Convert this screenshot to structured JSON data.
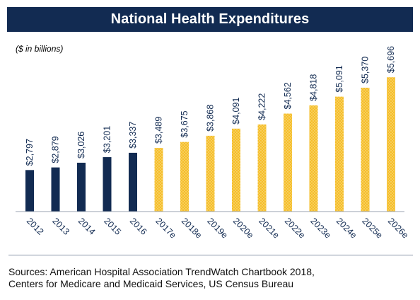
{
  "header": {
    "title": "National Health Expenditures"
  },
  "subtitle": "($ in billions)",
  "colors": {
    "header_bg": "#122b52",
    "actual_bar": "#122b52",
    "estimate_bar": "#f5be2a",
    "estimate_dot": "#fce7a6"
  },
  "chart_data": {
    "type": "bar",
    "title": "National Health Expenditures",
    "subtitle": "($ in billions)",
    "xlabel": "",
    "ylabel": "",
    "categories": [
      "2012",
      "2013",
      "2014",
      "2015",
      "2016",
      "2017e",
      "2018e",
      "2019e",
      "2020e",
      "2021e",
      "2022e",
      "2023e",
      "2024e",
      "2025e",
      "2026e"
    ],
    "values": [
      2797,
      2879,
      3026,
      3201,
      3337,
      3489,
      3675,
      3868,
      4091,
      4222,
      4562,
      4818,
      5091,
      5370,
      5696
    ],
    "labels": [
      "$2,797",
      "$2,879",
      "$3,026",
      "$3,201",
      "$3,337",
      "$3,489",
      "$3,675",
      "$3,868",
      "$4,091",
      "$4,222",
      "$4,562",
      "$4,818",
      "$5,091",
      "$5,370",
      "$5,696"
    ],
    "estimate_start_index": 5,
    "ylim": [
      1500,
      5900
    ],
    "grid": false
  },
  "source": {
    "line1": "Sources: American Hospital Association TrendWatch Chartbook 2018,",
    "line2": "Centers for Medicare and Medicaid Services, US Census Bureau"
  }
}
